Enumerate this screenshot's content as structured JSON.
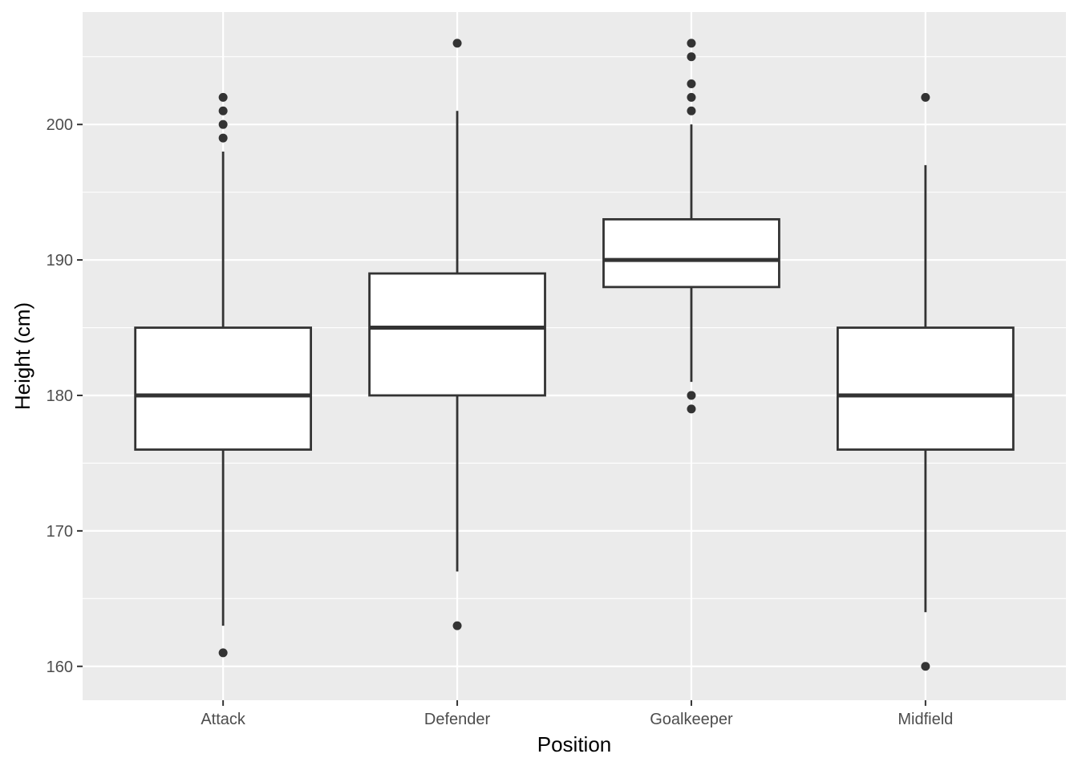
{
  "chart_data": {
    "type": "boxplot",
    "title": "",
    "xlabel": "Position",
    "ylabel": "Height (cm)",
    "ylim": [
      157.5,
      208.3
    ],
    "y_ticks": [
      160,
      170,
      180,
      190,
      200
    ],
    "grid": true,
    "categories": [
      "Attack",
      "Defender",
      "Goalkeeper",
      "Midfield"
    ],
    "boxes": [
      {
        "category": "Attack",
        "whisker_low": 163,
        "q1": 176,
        "median": 180,
        "q3": 185,
        "whisker_high": 198,
        "outliers": [
          161,
          199,
          200,
          201,
          202
        ]
      },
      {
        "category": "Defender",
        "whisker_low": 167,
        "q1": 180,
        "median": 185,
        "q3": 189,
        "whisker_high": 201,
        "outliers": [
          163,
          206
        ]
      },
      {
        "category": "Goalkeeper",
        "whisker_low": 181,
        "q1": 188,
        "median": 190,
        "q3": 193,
        "whisker_high": 200,
        "outliers": [
          179,
          180,
          201,
          202,
          203,
          205,
          206
        ]
      },
      {
        "category": "Midfield",
        "whisker_low": 164,
        "q1": 176,
        "median": 180,
        "q3": 185,
        "whisker_high": 197,
        "outliers": [
          160,
          202
        ]
      }
    ],
    "colors": {
      "panel": "#ebebeb",
      "grid": "#ffffff",
      "box_fill": "#ffffff",
      "box_line": "#333333",
      "tick": "#333333"
    }
  }
}
